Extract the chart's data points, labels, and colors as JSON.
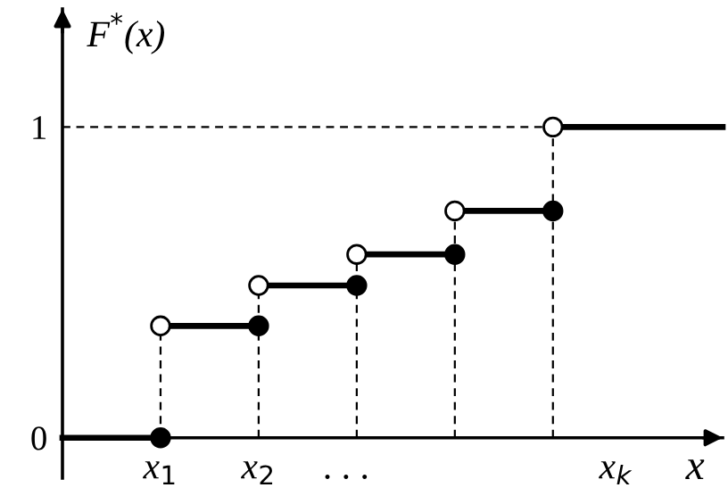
{
  "chart_data": {
    "type": "step",
    "ylabel": "F$^{*}$(x)",
    "xlabel": "x",
    "xlim": [
      0,
      6.73
    ],
    "ylim": [
      -0.13,
      1.38
    ],
    "xticks": [
      {
        "value": 1,
        "label": "x$_{1}$"
      },
      {
        "value": 2,
        "label": "x$_{2}$"
      },
      {
        "value": 2.9,
        "label": ". . ."
      },
      {
        "value": 5.64,
        "label": "x$_{k}$"
      }
    ],
    "yticks": [
      0,
      1
    ],
    "grid": false,
    "legend": false,
    "series": [
      {
        "type": "line",
        "line_style": "dashed",
        "color": "#000000",
        "x": [
          1,
          1
        ],
        "values": [
          0,
          0.36
        ]
      },
      {
        "type": "line",
        "line_style": "dashed",
        "color": "#000000",
        "x": [
          2,
          2
        ],
        "values": [
          0,
          0.49
        ]
      },
      {
        "type": "line",
        "line_style": "dashed",
        "color": "#000000",
        "x": [
          3,
          3
        ],
        "values": [
          0,
          0.59
        ]
      },
      {
        "type": "line",
        "line_style": "dashed",
        "color": "#000000",
        "x": [
          4,
          4
        ],
        "values": [
          0,
          0.73
        ]
      },
      {
        "type": "line",
        "line_style": "dashed",
        "color": "#000000",
        "x": [
          5,
          5
        ],
        "values": [
          0,
          1
        ]
      },
      {
        "type": "line",
        "line_style": "dashed",
        "color": "#000000",
        "x": [
          0,
          5
        ],
        "values": [
          1,
          1
        ]
      },
      {
        "line_style": "solid",
        "color": "#000000",
        "x": [
          0,
          1,
          2,
          3,
          4,
          5,
          6.73
        ],
        "values": [
          0,
          0.36,
          0.49,
          0.59,
          0.73,
          1,
          1
        ]
      },
      {
        "type": "scatter",
        "marker": "circle",
        "color": "#000000",
        "x": [
          1,
          2,
          3,
          4,
          5
        ],
        "values": [
          0,
          0.36,
          0.49,
          0.59,
          0.73
        ]
      },
      {
        "type": "scatter",
        "marker": "circle",
        "color": "#ffffff",
        "x": [
          1,
          2,
          3,
          4,
          5
        ],
        "values": [
          0.36,
          0.49,
          0.59,
          0.73,
          1
        ]
      }
    ]
  }
}
